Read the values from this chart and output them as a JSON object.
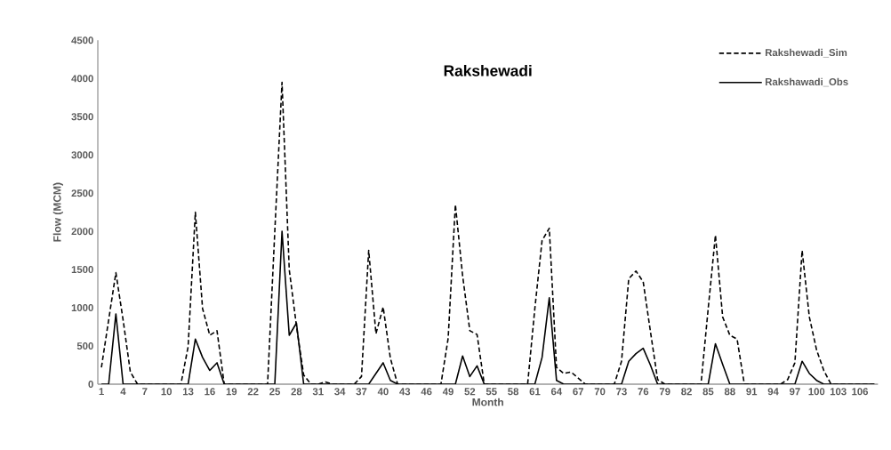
{
  "chart_data": {
    "type": "line",
    "title": "Rakshewadi",
    "xlabel": "Month",
    "ylabel": "Flow (MCM)",
    "categories": [
      "1",
      null,
      null,
      "4",
      null,
      null,
      "7",
      null,
      null,
      "10",
      null,
      null,
      "13",
      null,
      null,
      "16",
      null,
      null,
      "19",
      null,
      null,
      "22",
      null,
      null,
      "25",
      null,
      null,
      "28",
      null,
      null,
      "31",
      null,
      null,
      "34",
      null,
      null,
      "37",
      null,
      null,
      "40",
      null,
      null,
      "43",
      null,
      null,
      "46",
      null,
      null,
      "49",
      null,
      null,
      "52",
      null,
      null,
      "55",
      null,
      null,
      "58",
      null,
      null,
      "61",
      null,
      null,
      "64",
      null,
      null,
      "67",
      null,
      null,
      "70",
      null,
      null,
      "73",
      null,
      null,
      "76",
      null,
      null,
      "79",
      null,
      null,
      "82",
      null,
      null,
      "85",
      null,
      null,
      "88",
      null,
      null,
      "91",
      null,
      null,
      "94",
      null,
      null,
      "97",
      null,
      null,
      "100",
      null,
      null,
      "103",
      null,
      null,
      "106",
      null,
      null
    ],
    "series": [
      {
        "name": "Rakshewadi_Sim",
        "color": "#000000",
        "line_style": "dashed",
        "values": [
          220,
          840,
          1460,
          840,
          160,
          0,
          0,
          0,
          0,
          0,
          0,
          0,
          490,
          2250,
          990,
          640,
          700,
          0,
          0,
          0,
          0,
          0,
          0,
          0,
          2000,
          3950,
          1500,
          760,
          120,
          0,
          0,
          30,
          0,
          0,
          0,
          0,
          100,
          1750,
          660,
          1010,
          340,
          0,
          0,
          0,
          0,
          0,
          0,
          0,
          600,
          2350,
          1420,
          700,
          650,
          0,
          0,
          0,
          0,
          0,
          0,
          0,
          990,
          1880,
          2040,
          220,
          140,
          160,
          80,
          0,
          0,
          0,
          0,
          0,
          300,
          1380,
          1480,
          1340,
          690,
          60,
          0,
          0,
          0,
          0,
          0,
          0,
          990,
          1950,
          880,
          640,
          590,
          0,
          0,
          0,
          0,
          0,
          0,
          60,
          280,
          1750,
          880,
          450,
          180,
          0,
          0,
          0,
          0,
          0,
          0,
          0
        ]
      },
      {
        "name": "Rakshawadi_Obs",
        "color": "#000000",
        "line_style": "solid",
        "values": [
          0,
          0,
          920,
          0,
          0,
          0,
          0,
          0,
          0,
          0,
          0,
          0,
          0,
          590,
          350,
          180,
          280,
          0,
          0,
          0,
          0,
          0,
          0,
          0,
          0,
          2000,
          640,
          800,
          0,
          0,
          0,
          0,
          0,
          0,
          0,
          0,
          0,
          0,
          140,
          280,
          50,
          0,
          0,
          0,
          0,
          0,
          0,
          0,
          0,
          0,
          370,
          100,
          240,
          0,
          0,
          0,
          0,
          0,
          0,
          0,
          0,
          350,
          1130,
          50,
          0,
          0,
          0,
          0,
          0,
          0,
          0,
          0,
          0,
          300,
          400,
          470,
          250,
          0,
          0,
          0,
          0,
          0,
          0,
          0,
          0,
          530,
          260,
          0,
          0,
          0,
          0,
          0,
          0,
          0,
          0,
          0,
          0,
          300,
          140,
          50,
          0,
          0,
          0,
          0,
          0,
          0,
          0,
          0
        ]
      }
    ],
    "ylim": [
      0,
      4500
    ],
    "yticks": [
      0,
      500,
      1000,
      1500,
      2000,
      2500,
      3000,
      3500,
      4000,
      4500
    ],
    "grid": false,
    "legend": "top right"
  }
}
